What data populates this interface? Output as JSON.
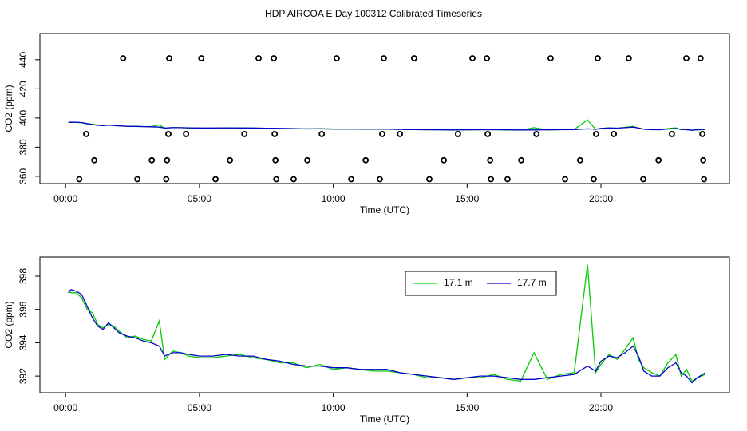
{
  "chart_data": [
    {
      "type": "scatter",
      "title": "HDP AIRCOA E  Day 100312  Calibrated Timeseries",
      "xlabel": "Time (UTC)",
      "ylabel": "CO2 (ppm)",
      "color": "#000000",
      "xlim": [
        -0.96,
        24.8
      ],
      "ylim": [
        355,
        458
      ],
      "xticks": [
        {
          "value": 0,
          "label": "00:00"
        },
        {
          "value": 5,
          "label": "05:00"
        },
        {
          "value": 10,
          "label": "10:00"
        },
        {
          "value": 15,
          "label": "15:00"
        },
        {
          "value": 20,
          "label": "20:00"
        }
      ],
      "yticks": [
        360,
        380,
        400,
        420,
        440
      ],
      "x": [
        2.15,
        3.87,
        5.07,
        7.21,
        7.78,
        10.13,
        11.89,
        13.02,
        15.2,
        15.74,
        18.12,
        19.88,
        21.04,
        23.19,
        23.72,
        0.77,
        3.84,
        4.5,
        6.68,
        7.81,
        9.57,
        11.83,
        12.49,
        14.66,
        15.77,
        17.59,
        19.82,
        20.48,
        22.65,
        23.79,
        1.07,
        3.22,
        3.79,
        6.14,
        7.84,
        9.03,
        11.21,
        14.13,
        15.86,
        17.02,
        19.22,
        22.15,
        23.82,
        0.51,
        2.68,
        3.76,
        5.6,
        7.87,
        8.52,
        10.67,
        11.74,
        13.59,
        15.89,
        16.51,
        18.66,
        19.73,
        21.58,
        23.85
      ],
      "y": [
        441,
        441,
        441,
        441,
        441,
        441,
        441,
        441,
        441,
        441,
        441,
        441,
        441,
        441,
        441,
        389,
        389,
        389,
        389,
        389,
        389,
        389,
        389,
        389,
        389,
        389,
        389,
        389,
        389,
        389,
        371,
        371,
        371,
        371,
        371,
        371,
        371,
        371,
        371,
        371,
        371,
        371,
        371,
        358,
        358,
        358,
        358,
        358,
        358,
        358,
        358,
        358,
        358,
        358,
        358,
        358,
        358,
        358
      ]
    },
    {
      "type": "line",
      "xlabel": "Time (UTC)",
      "ylabel": "CO2 (ppm)",
      "legend": "top",
      "xlim": [
        -0.96,
        24.8
      ],
      "ylim": [
        391.0,
        399.15
      ],
      "xticks": [
        {
          "value": 0,
          "label": "00:00"
        },
        {
          "value": 5,
          "label": "05:00"
        },
        {
          "value": 10,
          "label": "10:00"
        },
        {
          "value": 15,
          "label": "15:00"
        },
        {
          "value": 20,
          "label": "20:00"
        }
      ],
      "yticks": [
        392,
        394,
        396,
        398
      ],
      "x": [
        0.1,
        0.2,
        0.4,
        0.6,
        0.8,
        1.0,
        1.2,
        1.4,
        1.6,
        1.8,
        2.0,
        2.3,
        2.6,
        2.9,
        3.2,
        3.5,
        3.7,
        4.0,
        4.3,
        4.6,
        5.0,
        5.5,
        6.0,
        6.5,
        7.0,
        7.5,
        8.0,
        8.5,
        9.0,
        9.5,
        10.0,
        10.5,
        11.0,
        11.5,
        12.0,
        12.5,
        13.0,
        13.5,
        14.0,
        14.5,
        15.0,
        15.5,
        16.0,
        16.5,
        17.0,
        17.5,
        18.0,
        18.5,
        19.0,
        19.5,
        19.8,
        20.0,
        20.3,
        20.6,
        20.9,
        21.2,
        21.4,
        21.6,
        21.9,
        22.2,
        22.5,
        22.8,
        23.0,
        23.2,
        23.4,
        23.6,
        23.9
      ],
      "series": [
        {
          "name": "17.1 m",
          "color": "#00cc00",
          "values": [
            397.1,
            397.0,
            397.0,
            396.7,
            396.0,
            395.8,
            395.1,
            394.9,
            395.1,
            395.0,
            394.7,
            394.3,
            394.4,
            394.2,
            394.1,
            395.3,
            393.0,
            393.5,
            393.4,
            393.2,
            393.1,
            393.1,
            393.2,
            393.3,
            393.1,
            393.0,
            392.8,
            392.8,
            392.5,
            392.7,
            392.4,
            392.5,
            392.4,
            392.3,
            392.3,
            392.2,
            392.1,
            391.9,
            391.9,
            391.8,
            391.9,
            391.9,
            392.1,
            391.8,
            391.7,
            393.4,
            391.8,
            392.1,
            392.2,
            398.7,
            392.2,
            392.7,
            393.3,
            393.0,
            393.6,
            394.3,
            393.0,
            392.5,
            392.2,
            392.0,
            392.8,
            393.3,
            392.0,
            392.4,
            391.7,
            391.9,
            392.1
          ]
        },
        {
          "name": "17.7 m",
          "color": "#0000cc",
          "values": [
            397.0,
            397.2,
            397.1,
            396.9,
            396.2,
            395.5,
            395.0,
            394.8,
            395.2,
            394.9,
            394.6,
            394.4,
            394.3,
            394.1,
            394.0,
            393.8,
            393.2,
            393.4,
            393.4,
            393.3,
            393.2,
            393.2,
            393.3,
            393.2,
            393.2,
            393.0,
            392.9,
            392.7,
            392.6,
            392.6,
            392.5,
            392.5,
            392.4,
            392.4,
            392.4,
            392.2,
            392.1,
            392.0,
            391.9,
            391.8,
            391.9,
            392.0,
            392.0,
            391.9,
            391.8,
            391.8,
            391.9,
            392.0,
            392.1,
            392.6,
            392.3,
            392.9,
            393.2,
            393.1,
            393.4,
            393.8,
            393.2,
            392.3,
            392.0,
            392.0,
            392.5,
            392.8,
            392.2,
            392.0,
            391.6,
            391.9,
            392.2
          ]
        }
      ]
    }
  ]
}
